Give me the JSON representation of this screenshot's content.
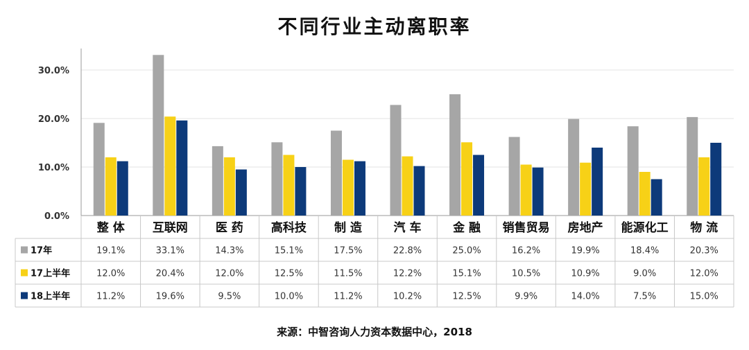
{
  "chart_data": {
    "type": "bar",
    "title": "不同行业主动离职率",
    "categories": [
      "整 体",
      "互联网",
      "医 药",
      "高科技",
      "制 造",
      "汽 车",
      "金 融",
      "销售贸易",
      "房地产",
      "能源化工",
      "物 流"
    ],
    "series": [
      {
        "name": "17年",
        "color": "#a6a6a6",
        "values": [
          19.1,
          33.1,
          14.3,
          15.1,
          17.5,
          22.8,
          25.0,
          16.2,
          19.9,
          18.4,
          20.3
        ],
        "labels": [
          "19.1%",
          "33.1%",
          "14.3%",
          "15.1%",
          "17.5%",
          "22.8%",
          "25.0%",
          "16.2%",
          "19.9%",
          "18.4%",
          "20.3%"
        ]
      },
      {
        "name": "17上半年",
        "color": "#f7d117",
        "values": [
          12.0,
          20.4,
          12.0,
          12.5,
          11.5,
          12.2,
          15.1,
          10.5,
          10.9,
          9.0,
          12.0
        ],
        "labels": [
          "12.0%",
          "20.4%",
          "12.0%",
          "12.5%",
          "11.5%",
          "12.2%",
          "15.1%",
          "10.5%",
          "10.9%",
          "9.0%",
          "12.0%"
        ]
      },
      {
        "name": "18上半年",
        "color": "#0d3a7a",
        "values": [
          11.2,
          19.6,
          9.5,
          10.0,
          11.2,
          10.2,
          12.5,
          9.9,
          14.0,
          7.5,
          15.0
        ],
        "labels": [
          "11.2%",
          "19.6%",
          "9.5%",
          "10.0%",
          "11.2%",
          "10.2%",
          "12.5%",
          "9.9%",
          "14.0%",
          "7.5%",
          "15.0%"
        ]
      }
    ],
    "ylim": [
      0,
      33
    ],
    "yticks": [
      0,
      10,
      20,
      30
    ],
    "ytick_labels": [
      "0.0%",
      "10.0%",
      "20.0%",
      "30.0%"
    ],
    "grid": true,
    "legend": "table",
    "source": "来源：中智咨询人力资本数据中心，2018"
  }
}
